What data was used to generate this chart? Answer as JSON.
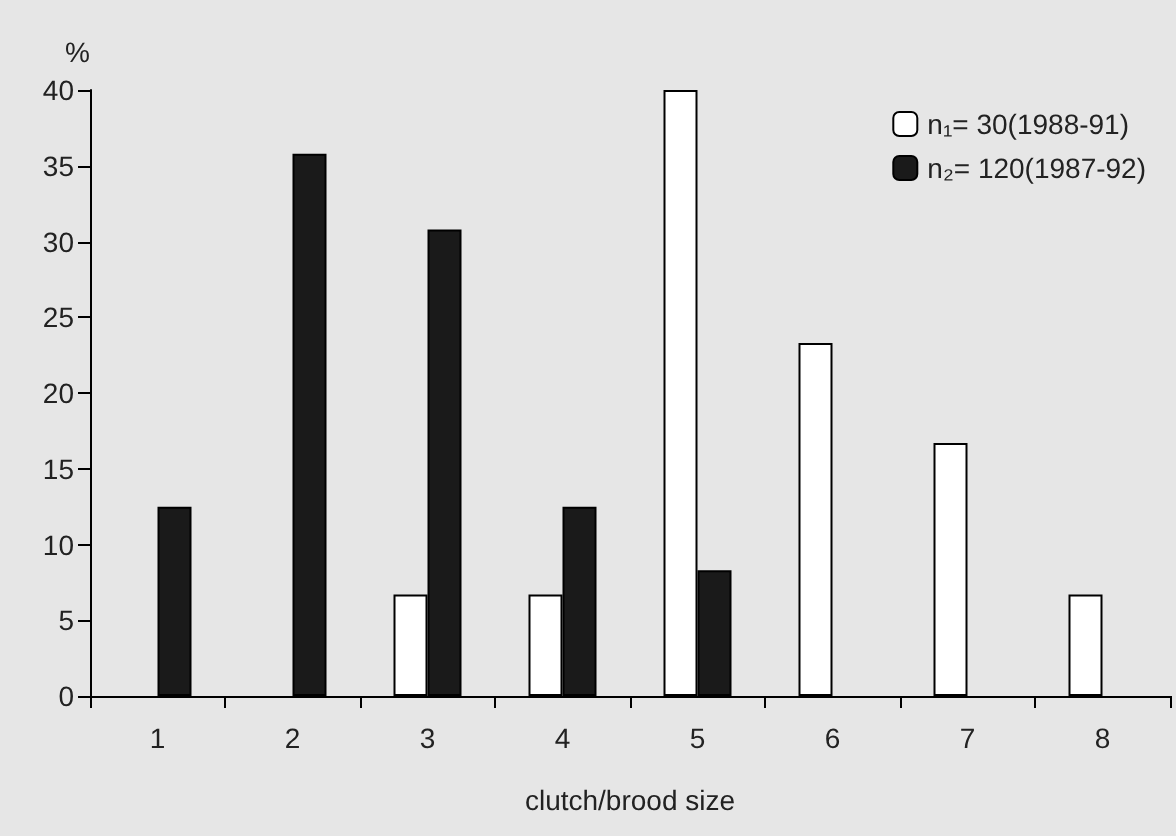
{
  "chart_data": {
    "type": "bar",
    "xlabel": "clutch/brood size",
    "ylabel": "%",
    "categories": [
      "1",
      "2",
      "3",
      "4",
      "5",
      "6",
      "7",
      "8"
    ],
    "series": [
      {
        "name": "n₁= 30(1988-91)",
        "color": "#ffffff",
        "values": [
          null,
          null,
          6.7,
          6.7,
          40,
          23.3,
          16.7,
          6.7
        ]
      },
      {
        "name": "n₂= 120(1987-92)",
        "color": "#1a1a1a",
        "values": [
          12.5,
          35.8,
          30.8,
          12.5,
          8.3,
          null,
          null,
          null
        ]
      }
    ],
    "ylim": [
      0,
      40
    ],
    "yticks": [
      0,
      5,
      10,
      15,
      20,
      25,
      30,
      35,
      40
    ],
    "grid": false,
    "legend": "top right"
  }
}
